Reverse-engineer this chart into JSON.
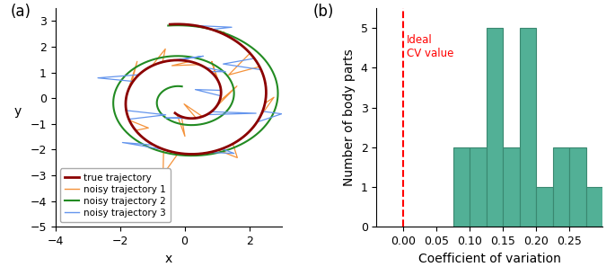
{
  "left_panel": {
    "label": "(a)",
    "true_traj_color": "#8B0000",
    "noisy1_color": "#F4923A",
    "noisy2_color": "#228B22",
    "noisy3_color": "#6495ED",
    "legend_labels": [
      "true trajectory",
      "noisy trajectory 1",
      "noisy trajectory 2",
      "noisy trajectory 3"
    ],
    "xlabel": "x",
    "ylabel": "y",
    "xlim": [
      -3.8,
      3.0
    ],
    "ylim": [
      -5.0,
      3.5
    ],
    "xticks": [
      -4,
      -2,
      0,
      2
    ],
    "yticks": [
      -5,
      -4,
      -3,
      -2,
      -1,
      0,
      1,
      2,
      3
    ]
  },
  "right_panel": {
    "label": "(b)",
    "bar_color": "#52B096",
    "bar_edge_color": "#3A8870",
    "bin_left_edges": [
      0.075,
      0.1,
      0.125,
      0.15,
      0.175,
      0.2,
      0.225,
      0.25,
      0.275
    ],
    "bar_heights": [
      2,
      2,
      5,
      2,
      5,
      1,
      2,
      2,
      1
    ],
    "bin_width": 0.025,
    "dashed_x": 0.0,
    "dashed_color": "#FF0000",
    "annotation_text": "Ideal\nCV value",
    "annotation_color": "#FF0000",
    "xlabel": "Coefficient of variation",
    "ylabel": "Number of body parts",
    "xlim": [
      -0.04,
      0.3
    ],
    "ylim": [
      0,
      5.5
    ],
    "yticks": [
      0,
      1,
      2,
      3,
      4,
      5
    ],
    "xticks": [
      0.0,
      0.05,
      0.1,
      0.15,
      0.2,
      0.25
    ]
  }
}
